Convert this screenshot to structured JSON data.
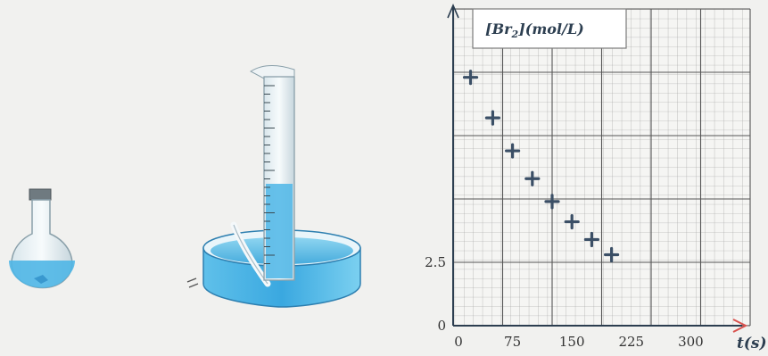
{
  "chart_data": {
    "type": "scatter",
    "title_parts": {
      "open": "[",
      "species": "Br",
      "sub": "2",
      "close": "]",
      "unit": "(mol/L)"
    },
    "xlabel": "t(s)",
    "x_ticks": [
      {
        "value": 0,
        "label": "0"
      },
      {
        "value": 75,
        "label": "75"
      },
      {
        "value": 150,
        "label": "150"
      },
      {
        "value": 225,
        "label": "225"
      },
      {
        "value": 300,
        "label": "300"
      }
    ],
    "y_ticks": [
      {
        "value": 0,
        "label": "0"
      },
      {
        "value": 2.5,
        "label": "2.5"
      }
    ],
    "xlim": [
      0,
      375
    ],
    "ylim": [
      0,
      12.5
    ],
    "grid": true,
    "points": [
      {
        "x": 22,
        "y": 9.8
      },
      {
        "x": 50,
        "y": 8.2
      },
      {
        "x": 75,
        "y": 6.9
      },
      {
        "x": 100,
        "y": 5.8
      },
      {
        "x": 125,
        "y": 4.9
      },
      {
        "x": 150,
        "y": 4.1
      },
      {
        "x": 175,
        "y": 3.4
      },
      {
        "x": 200,
        "y": 2.8
      }
    ]
  },
  "apparatus": {
    "flask": "round-bottom-flask",
    "cylinder": "graduated-cylinder",
    "trough": "water-trough"
  }
}
